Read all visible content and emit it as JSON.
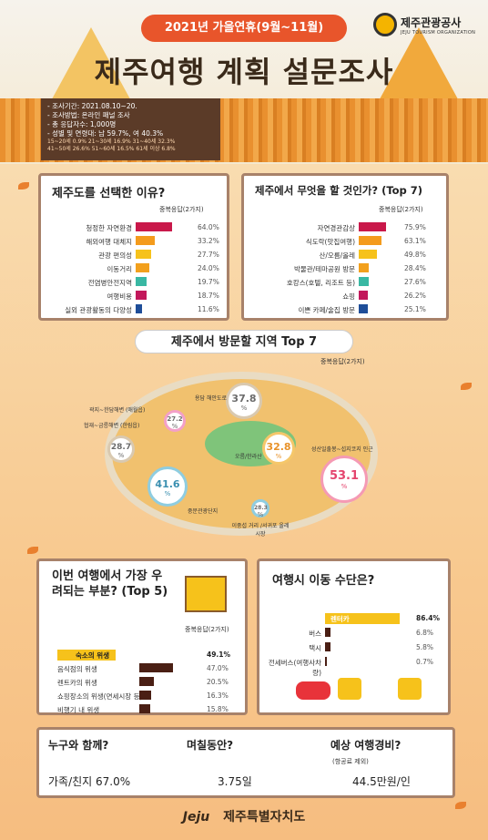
{
  "header": {
    "pill": "2021년 가을연휴(9월~11월)",
    "title": "제주여행 계획 설문조사",
    "org_name": "제주관광공사",
    "org_sub": "JEJU TOURISM ORGANIZATION",
    "info": [
      "- 조사기간: 2021.08.10~20.",
      "- 조사방법: 온라인 패널 조사",
      "- 총 응답자수: 1,000명",
      "- 성별 및 연령대: 남 59.7%, 여 40.3%"
    ],
    "info_small": [
      "15~20세 0.9% 21~30세 16.9% 31~40세 32.3%",
      "41~50세 26.6% 51~60세 16.5% 61세 이상 6.8%"
    ]
  },
  "chart_data": [
    {
      "type": "bar",
      "title": "제주도를 선택한 이유?",
      "note": "중복응답(2가지)",
      "categories": [
        "청정한 자연환경",
        "해외여행 대체지",
        "관광 편의성",
        "이동거리",
        "전염병안전지역",
        "여행비용",
        "실외 관광활동의 다양성"
      ],
      "values": [
        64.0,
        33.2,
        27.7,
        24.0,
        19.7,
        18.7,
        11.6
      ],
      "labels": [
        "64.0%",
        "33.2%",
        "27.7%",
        "24.0%",
        "19.7%",
        "18.7%",
        "11.6%"
      ],
      "colors": [
        "#c9184a",
        "#f49b1c",
        "#f6c21b",
        "#f2a01d",
        "#39b8a3",
        "#c2185b",
        "#1f4e99"
      ],
      "xlim": [
        0,
        100
      ]
    },
    {
      "type": "bar",
      "title": "제주에서 무엇을 할 것인가? (Top 7)",
      "note": "중복응답(2가지)",
      "categories": [
        "자연경관감상",
        "식도락(맛집여행)",
        "산/오름/올레",
        "박물관/테마공원 방문",
        "호캉스(호텔, 리조트 등)",
        "쇼핑",
        "이쁜 카페/술집 방문"
      ],
      "values": [
        75.9,
        63.1,
        49.8,
        28.4,
        27.6,
        26.2,
        25.1
      ],
      "labels": [
        "75.9%",
        "63.1%",
        "49.8%",
        "28.4%",
        "27.6%",
        "26.2%",
        "25.1%"
      ],
      "colors": [
        "#c9184a",
        "#f49b1c",
        "#f6c21b",
        "#f2a01d",
        "#39b8a3",
        "#c2185b",
        "#1f4e99"
      ],
      "xlim": [
        0,
        100
      ]
    },
    {
      "type": "bar",
      "title": "이번 여행에서 가장 우려되는 부분? (Top 5)",
      "note": "중복응답(2가지)",
      "categories": [
        "숙소의 위생",
        "음식점의 위생",
        "렌트카의 위생",
        "쇼핑장소의 위생(면세시장 등)",
        "비행기 내 위생"
      ],
      "values": [
        49.1,
        47.0,
        20.5,
        16.3,
        15.8
      ],
      "labels": [
        "49.1%",
        "47.0%",
        "20.5%",
        "16.3%",
        "15.8%"
      ],
      "xlim": [
        0,
        100
      ]
    },
    {
      "type": "bar",
      "title": "여행시 이동 수단은?",
      "categories": [
        "렌터카",
        "버스",
        "택시",
        "전세버스(여행사차량)"
      ],
      "values": [
        86.4,
        6.8,
        5.8,
        0.7
      ],
      "labels": [
        "86.4%",
        "6.8%",
        "5.8%",
        "0.7%"
      ],
      "xlim": [
        0,
        100
      ]
    }
  ],
  "map": {
    "banner": "제주에서 방문할 지역 Top 7",
    "note": "중복응답(2가지)",
    "unit": "%",
    "regions": [
      {
        "name": "용담 해안도로",
        "value": "37.8"
      },
      {
        "name": "곽지~한담해변 (애월읍)",
        "value": "27.2"
      },
      {
        "name": "협재~금릉해변 (한림읍)",
        "value": "28.7"
      },
      {
        "name": "오름/한라산",
        "value": "32.8"
      },
      {
        "name": "성산일출봉~섭지코지 인근",
        "value": "53.1"
      },
      {
        "name": "중문관광단지",
        "value": "41.6"
      },
      {
        "name": "이중섭 거리 /서귀포 올레시장",
        "value": "28.3"
      }
    ]
  },
  "bottom": {
    "with_q": "누구와 함께?",
    "with_a": "가족/친지 67.0%",
    "days_q": "며칠동안?",
    "days_a": "3.75일",
    "cost_q": "예상 여행경비?",
    "cost_sub": "(항공료 제외)",
    "cost_a": "44.5만원/인"
  },
  "footer": {
    "brand": "Jeju",
    "name": "제주특별자치도"
  }
}
